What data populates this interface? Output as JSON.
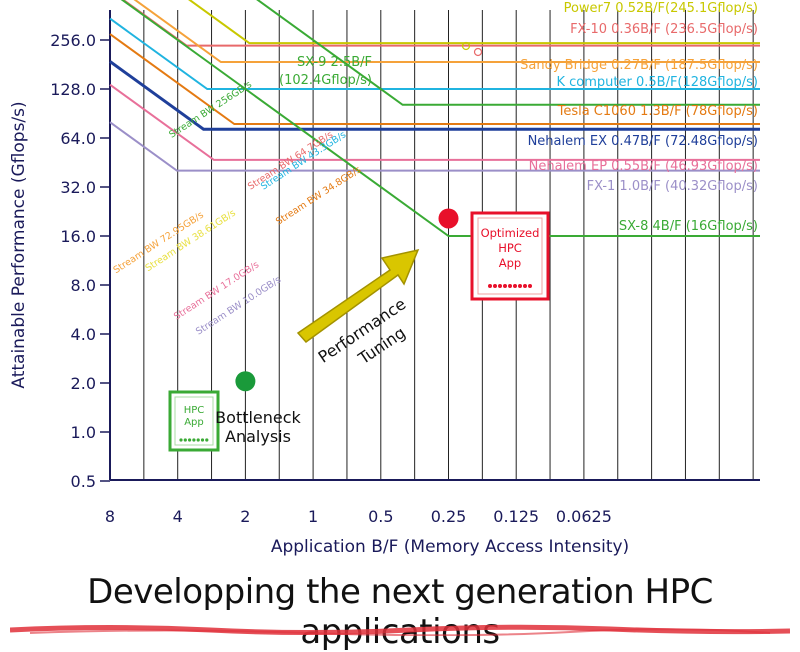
{
  "chart_data": {
    "type": "line",
    "title": "",
    "xlabel": "Application B/F (Memory Access Intensity)",
    "ylabel": "Attainable Performance (Gflops/s)",
    "scale": "log2",
    "x_ticks": [
      "8",
      "4",
      "2",
      "1",
      "0.5",
      "0.25",
      "0.125",
      "0.0625"
    ],
    "x_tick_values": [
      8,
      4,
      2,
      1,
      0.5,
      0.25,
      0.125,
      0.0625
    ],
    "y_ticks": [
      "0.5",
      "1.0",
      "2.0",
      "4.0",
      "8.0",
      "16.0",
      "32.0",
      "64.0",
      "128.0",
      "256.0"
    ],
    "y_tick_values": [
      0.5,
      1,
      2,
      4,
      8,
      16,
      32,
      64,
      128,
      256
    ],
    "grid": true,
    "series": [
      {
        "name": "Power7 0.52B/F(245.1Gflop/s)",
        "bw_label": "",
        "bw": 127.5,
        "peak": 245.1,
        "color": "#c8c800"
      },
      {
        "name": "FX-10 0.36B/F (236.5Gflop/s)",
        "bw_label": "Stream BW 64.7GB/s",
        "bw": 64.7,
        "peak": 236.5,
        "color": "#e8696a"
      },
      {
        "name": "Sandy Bridge 0.27B/F (187.5Gflop/s)",
        "bw_label": "Stream BW 72.95GB/s",
        "bw": 72.95,
        "peak": 187.5,
        "color": "#f5a23a"
      },
      {
        "name": "K computer 0.5B/F(128Gflop/s)",
        "bw_label": "Stream BW 43.3GB/s",
        "bw": 43.3,
        "peak": 128,
        "color": "#20b4e0"
      },
      {
        "name": "SX-9  2.5B/F (102.4Gflop/s)",
        "bw_label": "Stream BW 256GB/s",
        "bw": 256,
        "peak": 102.4,
        "color": "#3aaa35"
      },
      {
        "name": "Tesla C1060 1.3B/F (78Gflop/s)",
        "bw_label": "Stream BW 34.8GB/s",
        "bw": 34.8,
        "peak": 78,
        "color": "#e47a12"
      },
      {
        "name": "Nehalem EX 0.47B/F (72.48Gflop/s)",
        "bw_label": "",
        "bw": 23.6,
        "peak": 72.48,
        "color": "#1f3f9a"
      },
      {
        "name": "Nehalem EP 0.55B/F (46.93Gflop/s)",
        "bw_label": "Stream BW 17.0GB/s",
        "bw": 17.0,
        "peak": 46.93,
        "color": "#e8709a"
      },
      {
        "name": "FX-1 1.0B/F (40.32Gflop/s)",
        "bw_label": "Stream BW 10.0GB/s",
        "bw": 10.0,
        "peak": 40.32,
        "color": "#9b8fc8"
      },
      {
        "name": "SX-8  4B/F (16Gflop/s)",
        "bw_label": "",
        "bw": 64,
        "peak": 16,
        "color": "#3aaa35"
      }
    ],
    "extra_bw_labels": [
      {
        "text": "Stream BW 38.61GB/s",
        "color": "#e8e040"
      }
    ],
    "points": [
      {
        "x": 0.25,
        "y": 20.5,
        "color": "#e8102a"
      },
      {
        "x": 2,
        "y": 2.05,
        "color": "#1a9a3a"
      }
    ],
    "annotations": {
      "arrow_label": [
        "Performance",
        "Tuning"
      ],
      "optimized_app": [
        "Optimized",
        "HPC",
        "App"
      ],
      "hpc_app": [
        "HPC",
        "App"
      ],
      "bottleneck": [
        "Bottleneck",
        "Analysis"
      ]
    }
  },
  "caption": "Developping the next generation HPC applications"
}
